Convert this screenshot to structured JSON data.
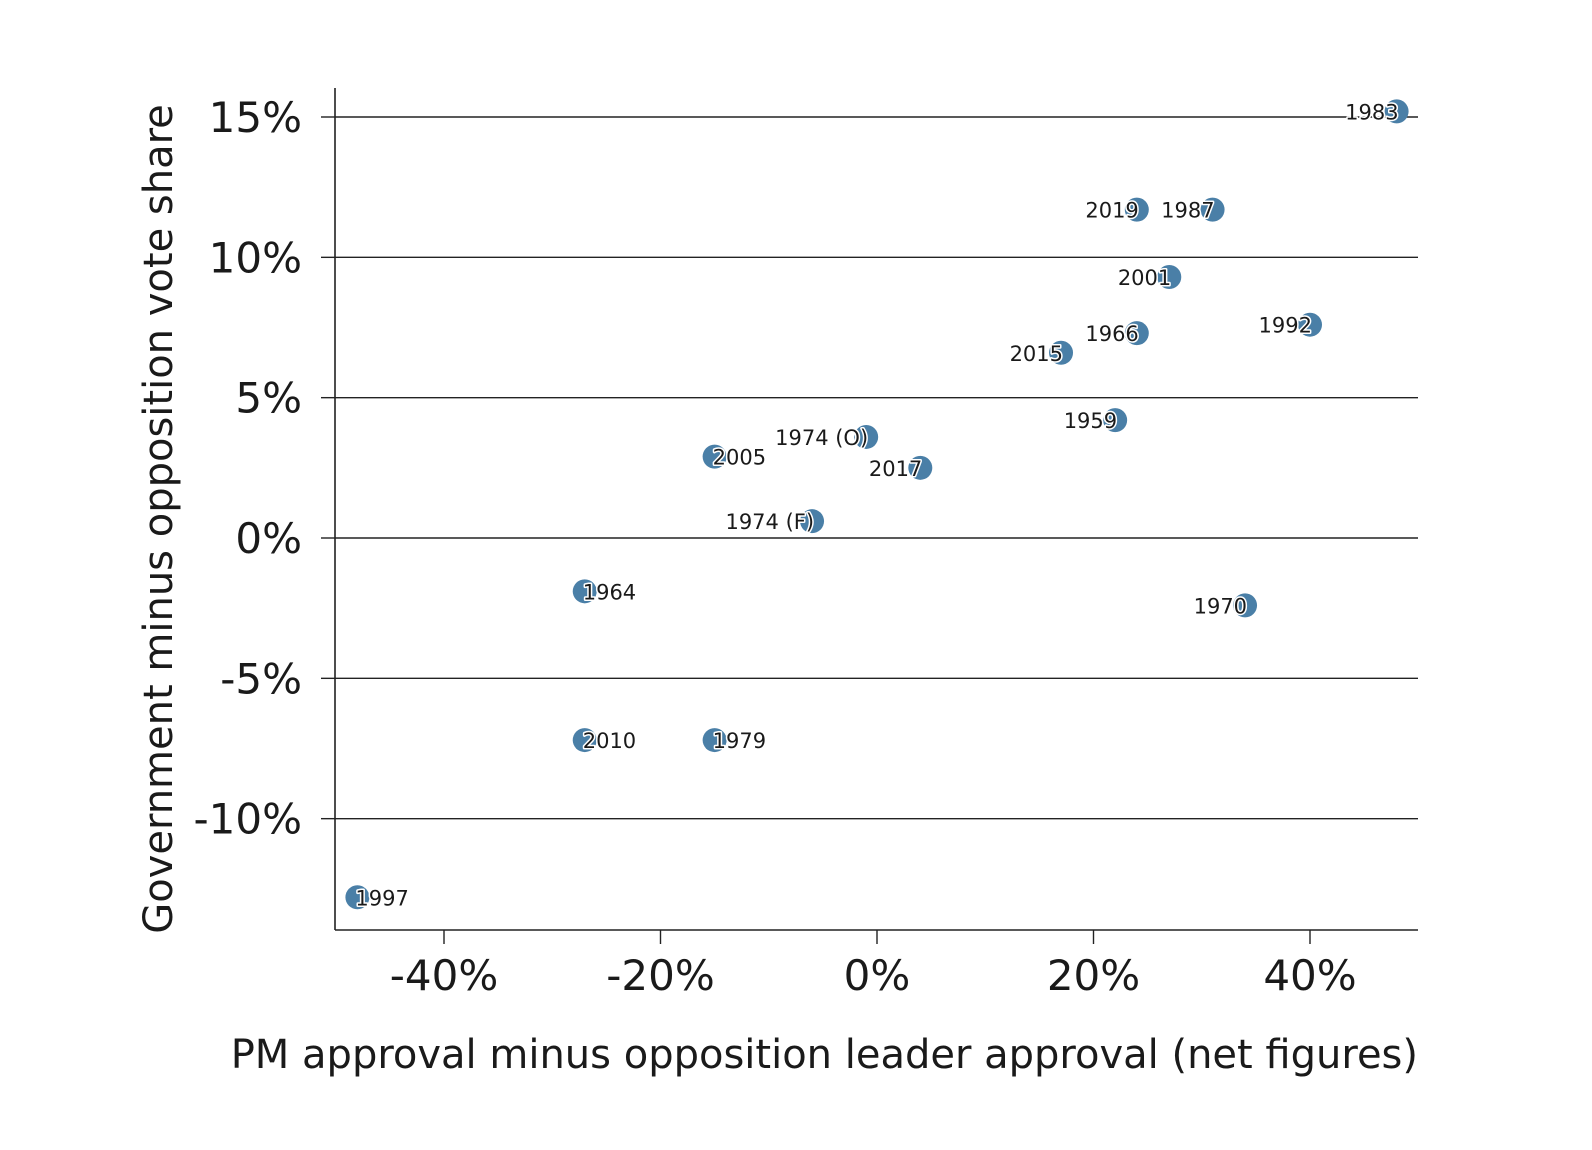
{
  "chart_data": {
    "type": "scatter",
    "title": "",
    "xlabel": "PM approval minus opposition leader approval (net figures)",
    "ylabel": "Government minus opposition vote share",
    "xlim": [
      -50,
      50
    ],
    "ylim": [
      -14,
      16
    ],
    "x_ticks": [
      -40,
      -20,
      0,
      20,
      40
    ],
    "x_tick_labels": [
      "-40%",
      "-20%",
      "0%",
      "20%",
      "40%"
    ],
    "y_ticks": [
      15,
      10,
      5,
      0,
      -5,
      -10
    ],
    "y_tick_labels": [
      "15%",
      "10%",
      "5%",
      "0%",
      "-5%",
      "-10%"
    ],
    "grid": "horizontal",
    "point_color": "#4a7fa7",
    "points": [
      {
        "label": "1983",
        "x": 48,
        "y": 15.2
      },
      {
        "label": "2019",
        "x": 24,
        "y": 11.7
      },
      {
        "label": "1987",
        "x": 31,
        "y": 11.7
      },
      {
        "label": "2001",
        "x": 27,
        "y": 9.3
      },
      {
        "label": "1992",
        "x": 40,
        "y": 7.6
      },
      {
        "label": "1966",
        "x": 24,
        "y": 7.3
      },
      {
        "label": "2015",
        "x": 17,
        "y": 6.6
      },
      {
        "label": "1959",
        "x": 22,
        "y": 4.2
      },
      {
        "label": "1974 (O)",
        "x": -1,
        "y": 3.6
      },
      {
        "label": "2005",
        "x": -15,
        "y": 2.9
      },
      {
        "label": "2017",
        "x": 4,
        "y": 2.5
      },
      {
        "label": "1974 (F)",
        "x": -6,
        "y": 0.6
      },
      {
        "label": "1964",
        "x": -27,
        "y": -1.9
      },
      {
        "label": "1970",
        "x": 34,
        "y": -2.4
      },
      {
        "label": "2010",
        "x": -27,
        "y": -7.2
      },
      {
        "label": "1979",
        "x": -15,
        "y": -7.2
      },
      {
        "label": "1997",
        "x": -48,
        "y": -12.8
      }
    ]
  }
}
